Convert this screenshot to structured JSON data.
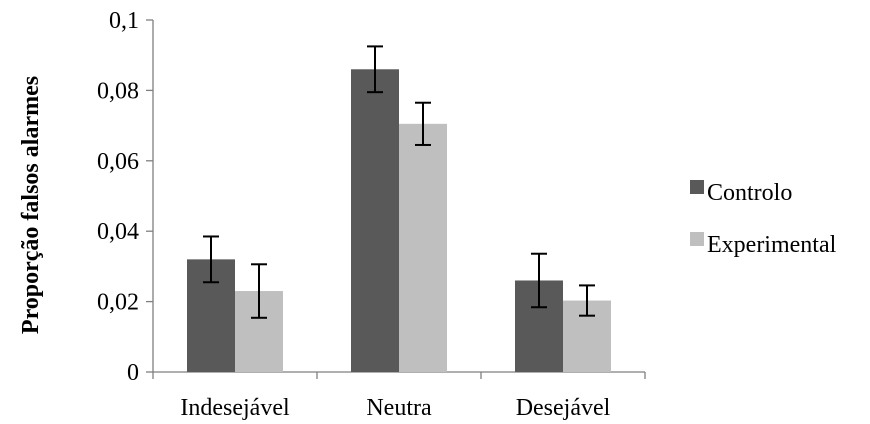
{
  "chart_data": {
    "type": "bar",
    "title": "",
    "xlabel": "",
    "ylabel": "Proporção falsos alarmes",
    "categories": [
      "Indesejável",
      "Neutra",
      "Desejável"
    ],
    "series": [
      {
        "name": "Controlo",
        "color": "#595959",
        "values": [
          0.032,
          0.086,
          0.026
        ],
        "error": [
          0.0065,
          0.0065,
          0.0076
        ]
      },
      {
        "name": "Experimental",
        "color": "#bfbfbf",
        "values": [
          0.023,
          0.0705,
          0.0203
        ],
        "error": [
          0.0076,
          0.006,
          0.0043
        ]
      }
    ],
    "ylim": [
      0,
      0.1
    ],
    "yticks": [
      0,
      0.02,
      0.04,
      0.06,
      0.08,
      0.1
    ],
    "ytick_labels": [
      "0",
      "0,02",
      "0,04",
      "0,06",
      "0,08",
      "0,1"
    ],
    "grid": false,
    "legend_position": "right"
  }
}
